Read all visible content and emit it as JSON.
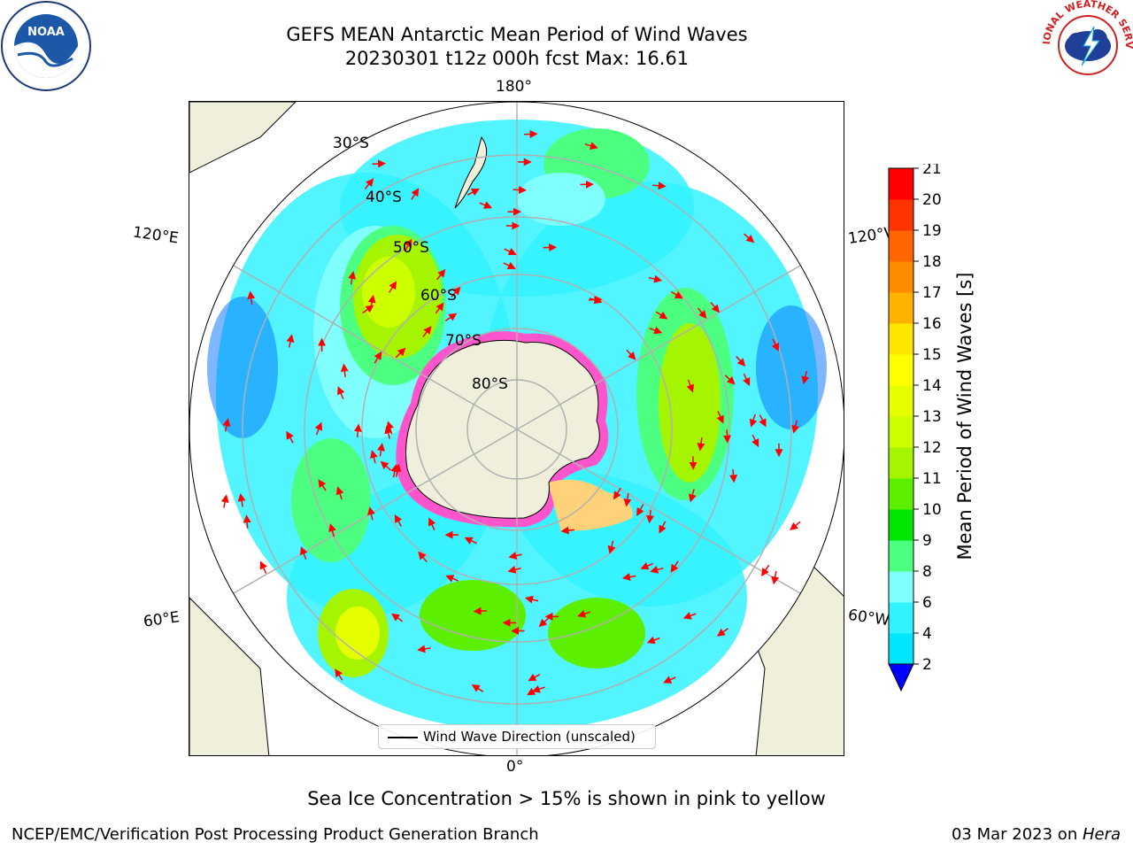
{
  "title_line1": "GEFS MEAN Antarctic Mean Period of Wind Waves",
  "title_line2": "20230301 t12z 000h fcst   Max: 16.61",
  "footnote": "Sea Ice Concentration > 15% is shown in pink to yellow",
  "credit": "NCEP/EMC/Verification Post Processing Product Generation Branch",
  "date_text": "03 Mar 2023 on ",
  "date_machine": "Hera",
  "legend": {
    "label": "Wind Wave Direction (unscaled)"
  },
  "grid_labels": {
    "lon_top": "180°",
    "lon_bottom": "0°",
    "lon_left_upper": "120°E",
    "lon_left_lower": "60°E",
    "lon_right_upper": "120°W",
    "lon_right_lower": "60°W",
    "lat_30": "30°S",
    "lat_40": "40°S",
    "lat_50": "50°S",
    "lat_60": "60°S",
    "lat_70": "70°S",
    "lat_80": "80°S"
  },
  "colorbar": {
    "label": "Mean Period of Wind Waves [s]",
    "ticks": [
      "2",
      "4",
      "6",
      "8",
      "9",
      "10",
      "11",
      "12",
      "13",
      "14",
      "15",
      "16",
      "17",
      "18",
      "19",
      "20",
      "21"
    ],
    "colors": [
      "#0070ff",
      "#00e6ff",
      "#33f2ff",
      "#80ffff",
      "#4dff80",
      "#00e600",
      "#5cf000",
      "#a6f500",
      "#ccff00",
      "#e6ff00",
      "#ffff00",
      "#ffe600",
      "#ffb300",
      "#ff8c00",
      "#ff6600",
      "#ff3300",
      "#ff0000"
    ],
    "under_color": "#0000ff",
    "extend": "min"
  },
  "logos": {
    "noaa": {
      "name": "NOAA",
      "ring_text": "NATIONAL OCEANIC AND ATMOSPHERIC ADMINISTRATION · U.S. DEPARTMENT OF COMMERCE"
    },
    "nws": {
      "ring_text": "NATIONAL WEATHER SERVICE"
    }
  },
  "colors": {
    "land": "#efefdb",
    "ice_pink": "#ff55cc",
    "ice_yellow": "#ffd27a",
    "arrow": "#ff0000",
    "grid": "#b0b0b0"
  }
}
